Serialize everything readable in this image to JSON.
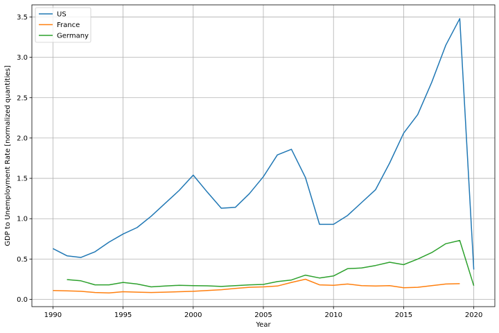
{
  "chart_data": {
    "type": "line",
    "title": "",
    "xlabel": "Year",
    "ylabel": "GDP to Unemployment Rate [normalized quantities]",
    "xlim": [
      1988.5,
      2021.5
    ],
    "ylim": [
      -0.09,
      3.65
    ],
    "xticks": [
      1990,
      1995,
      2000,
      2005,
      2010,
      2015,
      2020
    ],
    "xtick_labels": [
      "1990",
      "1995",
      "2000",
      "2005",
      "2010",
      "2015",
      "2020"
    ],
    "yticks": [
      0.0,
      0.5,
      1.0,
      1.5,
      2.0,
      2.5,
      3.0,
      3.5
    ],
    "ytick_labels": [
      "0.0",
      "0.5",
      "1.0",
      "1.5",
      "2.0",
      "2.5",
      "3.0",
      "3.5"
    ],
    "grid": true,
    "legend_position": "top-left",
    "series": [
      {
        "name": "US",
        "color": "#1f77b4",
        "x": [
          1990,
          1991,
          1992,
          1993,
          1994,
          1995,
          1996,
          1997,
          1998,
          1999,
          2000,
          2001,
          2002,
          2003,
          2004,
          2005,
          2006,
          2007,
          2008,
          2009,
          2010,
          2011,
          2012,
          2013,
          2014,
          2015,
          2016,
          2017,
          2018,
          2019,
          2020
        ],
        "y": [
          0.63,
          0.54,
          0.52,
          0.59,
          0.71,
          0.81,
          0.89,
          1.03,
          1.19,
          1.35,
          1.54,
          1.33,
          1.13,
          1.14,
          1.31,
          1.52,
          1.79,
          1.86,
          1.51,
          0.93,
          0.93,
          1.04,
          1.2,
          1.36,
          1.69,
          2.06,
          2.29,
          2.69,
          3.15,
          3.48,
          0.37
        ]
      },
      {
        "name": "France",
        "color": "#ff7f0e",
        "x": [
          1990,
          1991,
          1992,
          1993,
          1994,
          1995,
          1996,
          1997,
          1998,
          1999,
          2000,
          2001,
          2002,
          2003,
          2004,
          2005,
          2006,
          2007,
          2008,
          2009,
          2010,
          2011,
          2012,
          2013,
          2014,
          2015,
          2016,
          2017,
          2018,
          2019
        ],
        "y": [
          0.11,
          0.105,
          0.1,
          0.085,
          0.08,
          0.095,
          0.09,
          0.085,
          0.09,
          0.095,
          0.1,
          0.11,
          0.12,
          0.135,
          0.15,
          0.155,
          0.165,
          0.21,
          0.25,
          0.18,
          0.175,
          0.19,
          0.17,
          0.165,
          0.17,
          0.145,
          0.15,
          0.17,
          0.19,
          0.195
        ]
      },
      {
        "name": "Germany",
        "color": "#2ca02c",
        "x": [
          1991,
          1992,
          1993,
          1994,
          1995,
          1996,
          1997,
          1998,
          1999,
          2000,
          2001,
          2002,
          2003,
          2004,
          2005,
          2006,
          2007,
          2008,
          2009,
          2010,
          2011,
          2012,
          2013,
          2014,
          2015,
          2016,
          2017,
          2018,
          2019,
          2020
        ],
        "y": [
          0.245,
          0.23,
          0.18,
          0.18,
          0.21,
          0.19,
          0.155,
          0.165,
          0.175,
          0.17,
          0.168,
          0.16,
          0.17,
          0.18,
          0.185,
          0.22,
          0.24,
          0.3,
          0.265,
          0.29,
          0.38,
          0.39,
          0.42,
          0.46,
          0.43,
          0.5,
          0.58,
          0.69,
          0.73,
          0.17
        ]
      }
    ]
  }
}
